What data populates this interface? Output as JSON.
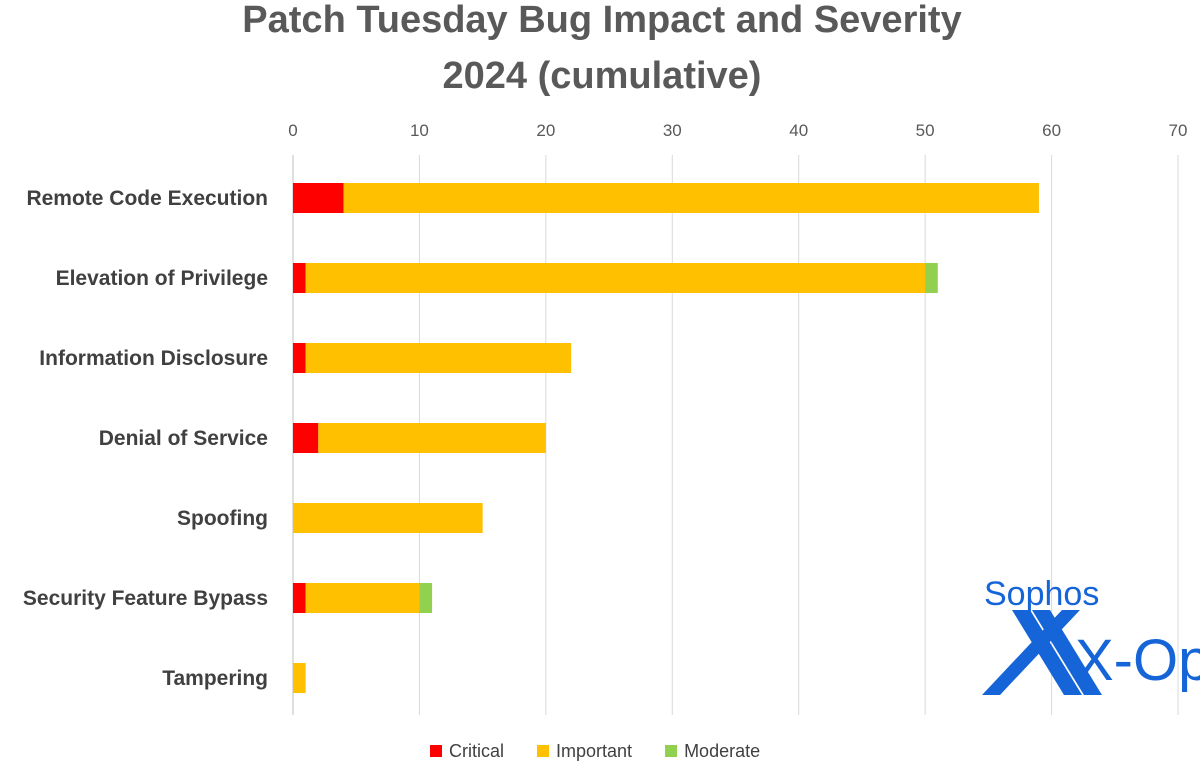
{
  "chart_data": {
    "type": "bar",
    "orientation": "horizontal",
    "stacked": true,
    "title": [
      "Patch Tuesday Bug Impact and Severity",
      "2024 (cumulative)"
    ],
    "categories": [
      "Remote Code Execution",
      "Elevation of Privilege",
      "Information Disclosure",
      "Denial of Service",
      "Spoofing",
      "Security Feature Bypass",
      "Tampering"
    ],
    "series": [
      {
        "name": "Critical",
        "color": "#ff0000",
        "values": [
          4,
          1,
          1,
          2,
          0,
          1,
          0
        ]
      },
      {
        "name": "Important",
        "color": "#ffc000",
        "values": [
          55,
          49,
          21,
          18,
          15,
          9,
          1
        ]
      },
      {
        "name": "Moderate",
        "color": "#92d050",
        "values": [
          0,
          1,
          0,
          0,
          0,
          1,
          0
        ]
      }
    ],
    "xlim": [
      0,
      70
    ],
    "xticks": [
      "0",
      "10",
      "20",
      "30",
      "40",
      "50",
      "60",
      "70"
    ],
    "axis_position": "top",
    "grid": true,
    "legend_position": "bottom"
  },
  "logo": {
    "line1": "Sophos",
    "line2": "X-Ops",
    "color": "#1565d8"
  }
}
